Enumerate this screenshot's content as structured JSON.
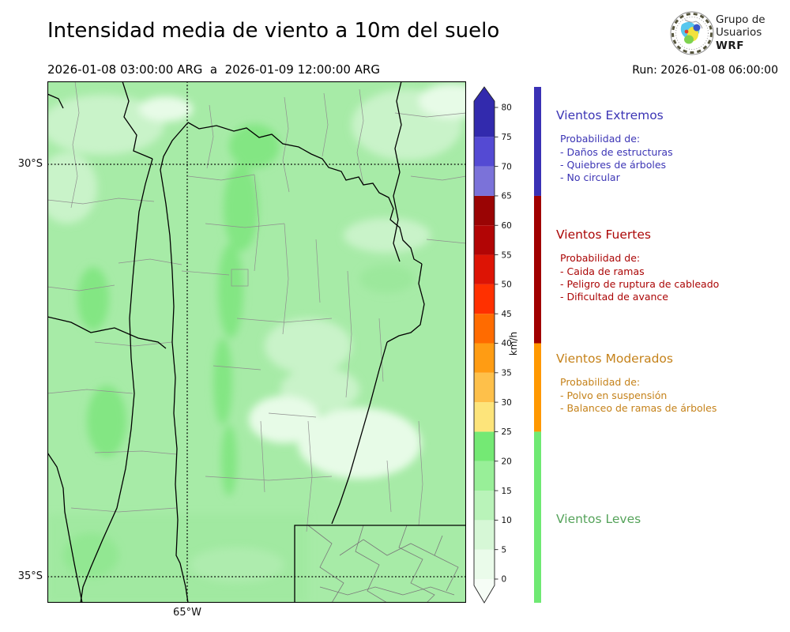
{
  "title": "Intensidad media de viento a 10m del suelo",
  "subtitle": "2026-01-08 03:00:00 ARG  a  2026-01-09 12:00:00 ARG",
  "run_label": "Run: 2026-01-08 06:00:00",
  "logo": {
    "line1": "Grupo de",
    "line2": "Usuarios",
    "line3": "WRF"
  },
  "map": {
    "lat_labels": [
      "30°S",
      "35°S"
    ],
    "lon_label": "65°W",
    "palette": {
      "base": "#a7eba7",
      "light": "#c9f3c9",
      "lighter": "#e7fbe7",
      "dark": "#83e683",
      "dark2": "#9ce89c",
      "deptline": "#8f8f8f",
      "partidoline": "#7a7a7a",
      "borderline": "#000000",
      "gridline": "#000000"
    }
  },
  "colorbar": {
    "unit": "km/h",
    "ticks": [
      0,
      5,
      10,
      15,
      20,
      25,
      30,
      35,
      40,
      45,
      50,
      55,
      60,
      65,
      70,
      75,
      80
    ],
    "segments": [
      {
        "from": 0,
        "to": 5,
        "color": "#eafbea"
      },
      {
        "from": 5,
        "to": 10,
        "color": "#d6f7d6"
      },
      {
        "from": 10,
        "to": 15,
        "color": "#b9f3b9"
      },
      {
        "from": 15,
        "to": 20,
        "color": "#98ef98"
      },
      {
        "from": 20,
        "to": 25,
        "color": "#74e974"
      },
      {
        "from": 25,
        "to": 30,
        "color": "#fde47a"
      },
      {
        "from": 30,
        "to": 35,
        "color": "#fec04a"
      },
      {
        "from": 35,
        "to": 40,
        "color": "#ff9c13"
      },
      {
        "from": 40,
        "to": 45,
        "color": "#ff6b00"
      },
      {
        "from": 45,
        "to": 50,
        "color": "#ff3000"
      },
      {
        "from": 50,
        "to": 55,
        "color": "#dd1405"
      },
      {
        "from": 55,
        "to": 60,
        "color": "#b20505"
      },
      {
        "from": 60,
        "to": 65,
        "color": "#9a0404"
      },
      {
        "from": 65,
        "to": 70,
        "color": "#7b72d9"
      },
      {
        "from": 70,
        "to": 75,
        "color": "#544ad3"
      },
      {
        "from": 75,
        "to": 80,
        "color": "#322aad"
      }
    ],
    "over_color": "#322aad",
    "under_color": "#f6fdf6"
  },
  "categories": [
    {
      "name": "Vientos Extremos",
      "text_color": "#3c35b5",
      "bar_color": "#3a31b5",
      "range": [
        65,
        85
      ],
      "prob_label": "Probabilidad de:",
      "items": [
        "- Daños de estructuras",
        "- Quiebres de árboles",
        "- No circular"
      ]
    },
    {
      "name": "Vientos Fuertes",
      "text_color": "#ab0606",
      "bar_color": "#a00000",
      "range": [
        40,
        65
      ],
      "prob_label": "Probabilidad de:",
      "items": [
        "- Caida de ramas",
        "- Peligro de ruptura de cableado",
        "- Dificultad de avance"
      ]
    },
    {
      "name": "Vientos Moderados",
      "text_color": "#c5821a",
      "bar_color": "#ff9800",
      "range": [
        25,
        40
      ],
      "prob_label": "Probabilidad de:",
      "items": [
        "- Polvo en suspensión",
        "- Balanceo de ramas de árboles"
      ]
    },
    {
      "name": "Vientos Leves",
      "text_color": "#55a35a",
      "bar_color": "#6fe973",
      "range": [
        0,
        25
      ],
      "prob_label": "",
      "items": []
    }
  ]
}
